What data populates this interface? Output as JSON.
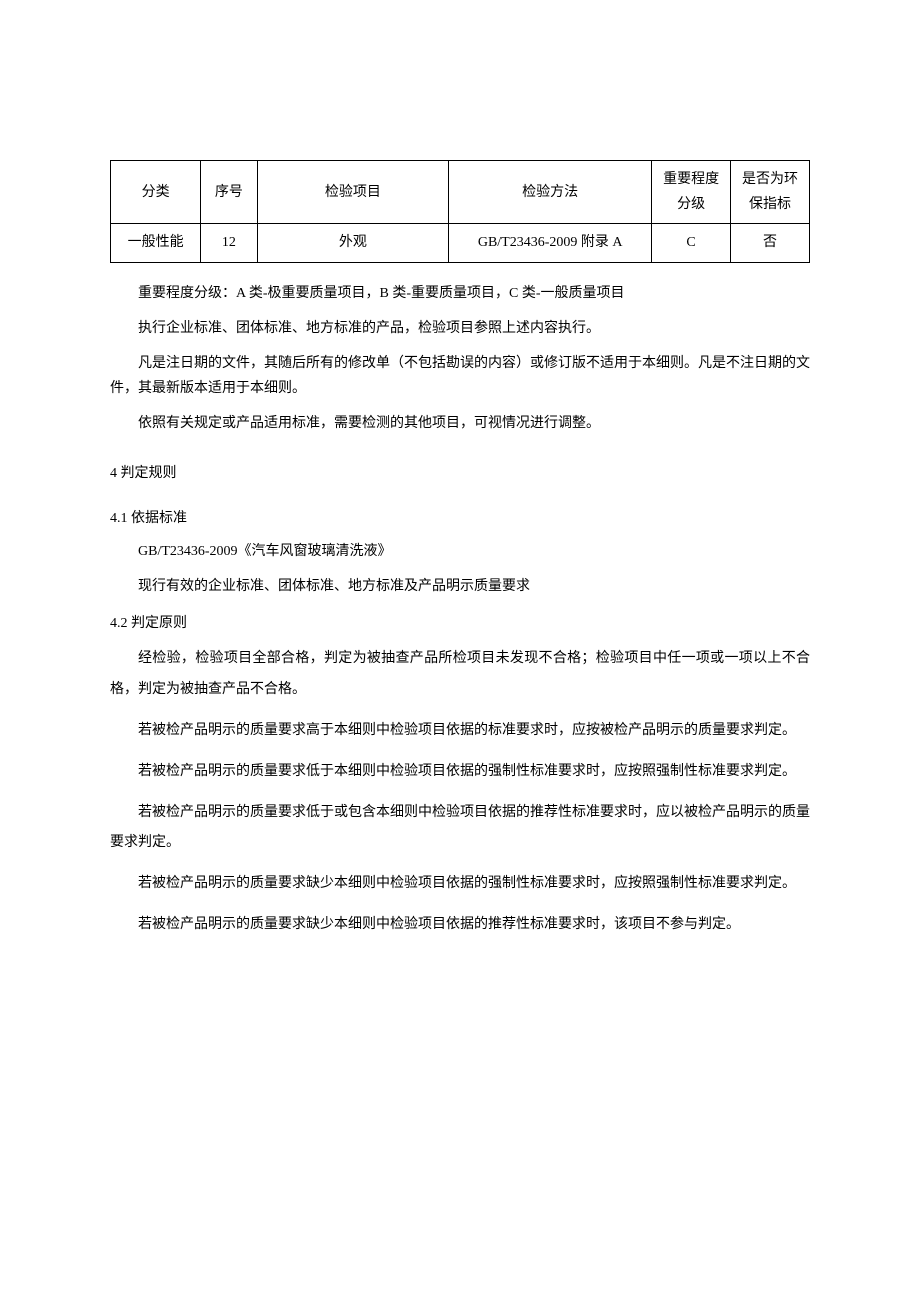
{
  "table": {
    "headers": {
      "category": "分类",
      "num": "序号",
      "item": "检验项目",
      "method": "检验方法",
      "level": "重要程度分级",
      "env": "是否为环保指标"
    },
    "row": {
      "category": "一般性能",
      "num": "12",
      "item": "外观",
      "method": "GB/T23436-2009 附录 A",
      "level": "C",
      "env": "否"
    }
  },
  "notes": {
    "p1": "重要程度分级：A 类-极重要质量项目，B 类-重要质量项目，C 类-一般质量项目",
    "p2": "执行企业标准、团体标准、地方标准的产品，检验项目参照上述内容执行。",
    "p3": "凡是注日期的文件，其随后所有的修改单（不包括勘误的内容）或修订版不适用于本细则。凡是不注日期的文件，其最新版本适用于本细则。",
    "p4": "依照有关规定或产品适用标准，需要检测的其他项目，可视情况进行调整。"
  },
  "section4": {
    "title": "4 判定规则",
    "s41": {
      "title": "4.1 依据标准",
      "line1": "GB/T23436-2009《汽车风窗玻璃清洗液》",
      "line2": "现行有效的企业标准、团体标准、地方标准及产品明示质量要求"
    },
    "s42": {
      "title": "4.2 判定原则",
      "p1": "经检验，检验项目全部合格，判定为被抽查产品所检项目未发现不合格；检验项目中任一项或一项以上不合格，判定为被抽查产品不合格。",
      "p2": "若被检产品明示的质量要求高于本细则中检验项目依据的标准要求时，应按被检产品明示的质量要求判定。",
      "p3": "若被检产品明示的质量要求低于本细则中检验项目依据的强制性标准要求时，应按照强制性标准要求判定。",
      "p4": "若被检产品明示的质量要求低于或包含本细则中检验项目依据的推荐性标准要求时，应以被检产品明示的质量要求判定。",
      "p5": "若被检产品明示的质量要求缺少本细则中检验项目依据的强制性标准要求时，应按照强制性标准要求判定。",
      "p6": "若被检产品明示的质量要求缺少本细则中检验项目依据的推荐性标准要求时，该项目不参与判定。"
    }
  }
}
